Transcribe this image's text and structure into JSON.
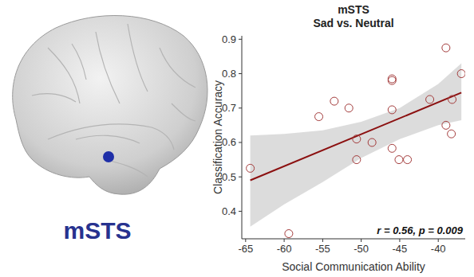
{
  "figure": {
    "region_label": "mSTS"
  },
  "chart_data": {
    "type": "scatter",
    "title": "mSTS",
    "subtitle": "Sad vs. Neutral",
    "x_label": "Social Communication Ability",
    "y_label": "Classification Accuracy",
    "annotation": "r = 0.56, p = 0.009",
    "x": [
      -64.4,
      -59.4,
      -55.5,
      -53.5,
      -51.6,
      -50.6,
      -50.6,
      -48.6,
      -46.0,
      -46.0,
      -46.0,
      -46.0,
      -45.1,
      -44.0,
      -41.1,
      -39.0,
      -39.0,
      -38.2,
      -38.3,
      -37.0
    ],
    "values": [
      0.525,
      0.335,
      0.675,
      0.72,
      0.7,
      0.61,
      0.55,
      0.6,
      0.785,
      0.78,
      0.695,
      0.583,
      0.55,
      0.55,
      0.725,
      0.875,
      0.65,
      0.725,
      0.625,
      0.8
    ],
    "color": "#a33a3a",
    "marker": "circle-open",
    "fit": {
      "x": [
        -64.4,
        -37.0
      ],
      "values": [
        0.49,
        0.745
      ]
    },
    "band": {
      "x": [
        -64.4,
        -60,
        -55,
        -50,
        -45,
        -40,
        -37.0
      ],
      "lower": [
        0.355,
        0.42,
        0.485,
        0.555,
        0.61,
        0.65,
        0.665
      ],
      "upper": [
        0.62,
        0.625,
        0.635,
        0.66,
        0.7,
        0.77,
        0.83
      ]
    },
    "xlim": [
      -65.5,
      -36.5
    ],
    "ylim": [
      0.32,
      0.91
    ],
    "xticks": [
      -65,
      -60,
      -55,
      -50,
      -45,
      -40
    ],
    "yticks": [
      0.4,
      0.5,
      0.6,
      0.7,
      0.8,
      0.9
    ],
    "grid": false
  }
}
